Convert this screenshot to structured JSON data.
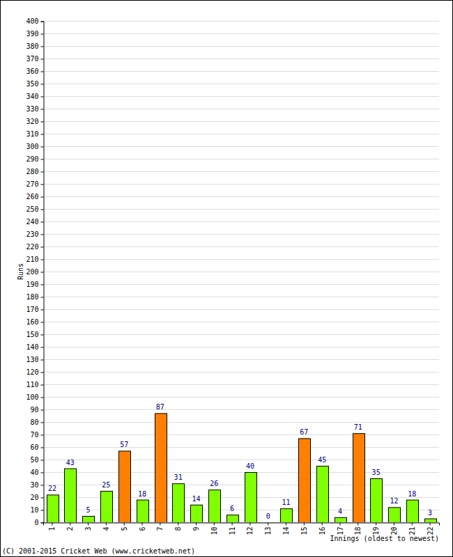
{
  "chart_data": {
    "type": "bar",
    "categories": [
      "1",
      "2",
      "3",
      "4",
      "5",
      "6",
      "7",
      "8",
      "9",
      "10",
      "11",
      "12",
      "13",
      "14",
      "15",
      "16",
      "17",
      "18",
      "19",
      "20",
      "21",
      "22"
    ],
    "values": [
      22,
      43,
      5,
      25,
      57,
      18,
      87,
      31,
      14,
      26,
      6,
      40,
      0,
      11,
      67,
      45,
      4,
      71,
      35,
      12,
      18,
      3
    ],
    "colors": [
      "#80ff00",
      "#80ff00",
      "#80ff00",
      "#80ff00",
      "#ff8000",
      "#80ff00",
      "#ff8000",
      "#80ff00",
      "#80ff00",
      "#80ff00",
      "#80ff00",
      "#80ff00",
      "#80ff00",
      "#80ff00",
      "#ff8000",
      "#80ff00",
      "#80ff00",
      "#ff8000",
      "#80ff00",
      "#80ff00",
      "#80ff00",
      "#80ff00"
    ],
    "ylim": [
      0,
      400
    ],
    "yticks": [
      0,
      10,
      20,
      30,
      40,
      50,
      60,
      70,
      80,
      90,
      100,
      110,
      120,
      130,
      140,
      150,
      160,
      170,
      180,
      190,
      200,
      210,
      220,
      230,
      240,
      250,
      260,
      270,
      280,
      290,
      300,
      310,
      320,
      330,
      340,
      350,
      360,
      370,
      380,
      390,
      400
    ],
    "grid": true,
    "data_labels": true,
    "y_label": "Runs",
    "x_label": "Innings (oldest to newest)",
    "annotations": [
      "(C) 2001-2015 Cricket Web (www.cricketweb.net)"
    ]
  }
}
